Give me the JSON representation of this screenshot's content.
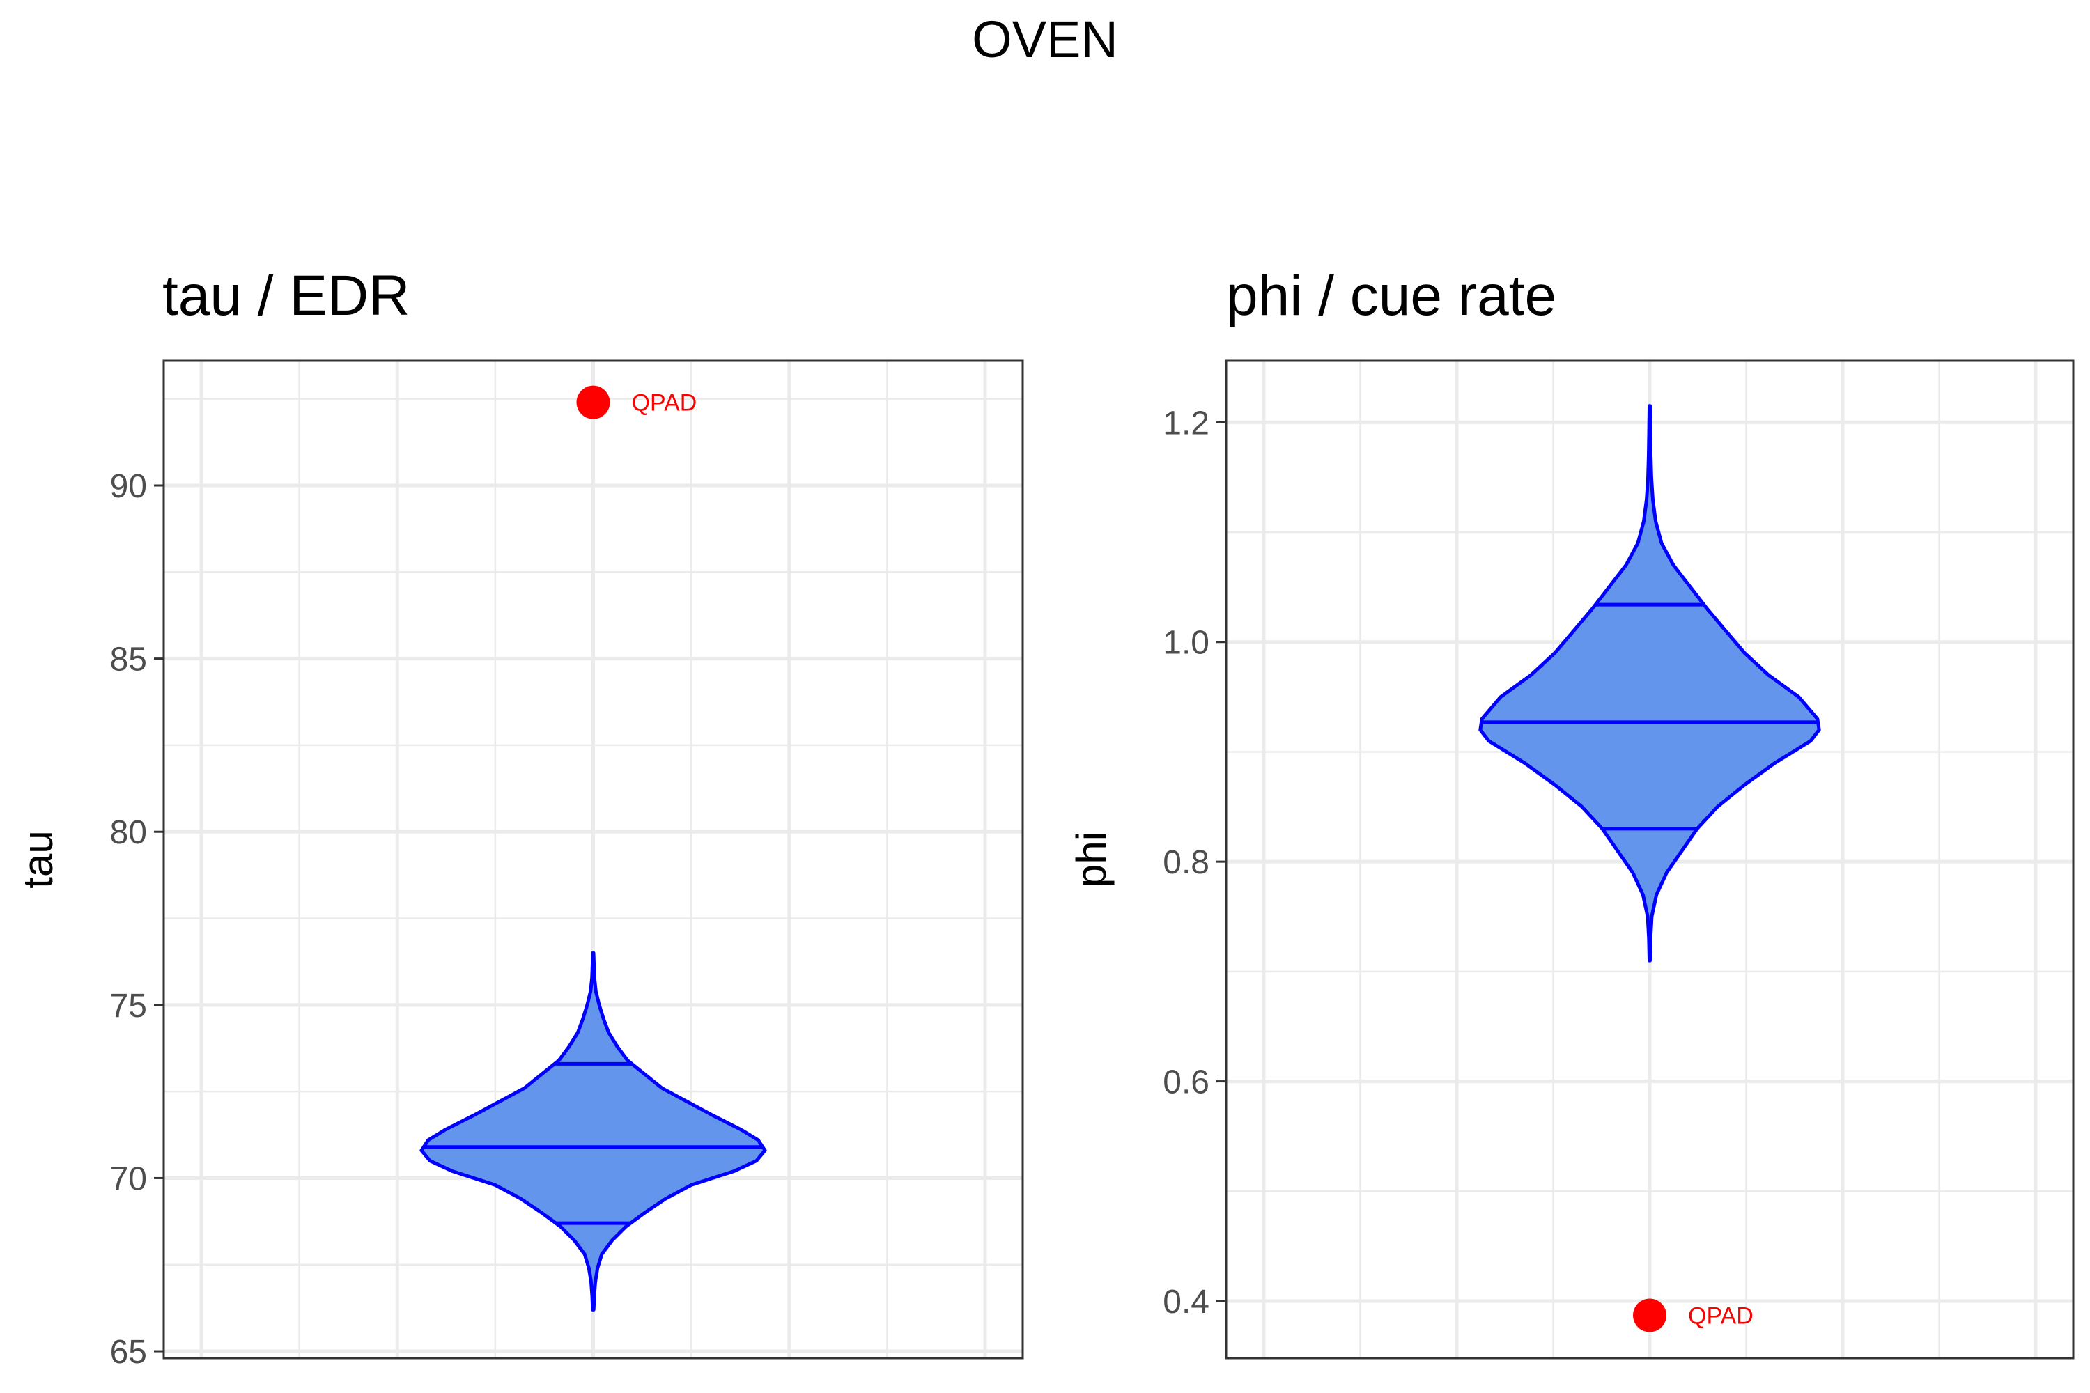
{
  "title": "OVEN",
  "chart_data": [
    {
      "type": "violin",
      "title": "tau / EDR",
      "ylabel": "tau",
      "xlabel": "",
      "ylim": [
        64.8,
        93.6
      ],
      "yticks": [
        65,
        70,
        75,
        80,
        85,
        90
      ],
      "grid": true,
      "fill_color": "#6495ED",
      "line_color": "#0000FF",
      "violin": {
        "min": 66.2,
        "max": 76.5,
        "quantiles": [
          68.7,
          70.9,
          73.3
        ],
        "density_profile": [
          [
            66.2,
            0.003
          ],
          [
            66.6,
            0.006
          ],
          [
            67.0,
            0.012
          ],
          [
            67.4,
            0.025
          ],
          [
            67.8,
            0.05
          ],
          [
            68.2,
            0.11
          ],
          [
            68.6,
            0.19
          ],
          [
            69.0,
            0.3
          ],
          [
            69.4,
            0.42
          ],
          [
            69.8,
            0.57
          ],
          [
            70.2,
            0.82
          ],
          [
            70.5,
            0.95
          ],
          [
            70.8,
            1.0
          ],
          [
            71.1,
            0.96
          ],
          [
            71.4,
            0.86
          ],
          [
            71.8,
            0.7
          ],
          [
            72.2,
            0.55
          ],
          [
            72.6,
            0.4
          ],
          [
            73.0,
            0.3
          ],
          [
            73.4,
            0.2
          ],
          [
            73.8,
            0.14
          ],
          [
            74.2,
            0.09
          ],
          [
            74.6,
            0.06
          ],
          [
            75.0,
            0.035
          ],
          [
            75.4,
            0.015
          ],
          [
            75.8,
            0.007
          ],
          [
            76.2,
            0.004
          ],
          [
            76.5,
            0.002
          ]
        ]
      },
      "annotation": {
        "label": "QPAD",
        "value": 92.4,
        "color": "#FF0000"
      }
    },
    {
      "type": "violin",
      "title": "phi / cue rate",
      "ylabel": "phi",
      "xlabel": "",
      "ylim": [
        0.348,
        1.256
      ],
      "yticks": [
        0.4,
        0.6,
        0.8,
        1.0,
        1.2
      ],
      "ytick_labels": [
        "0.4",
        "0.6",
        "0.8",
        "1.0",
        "1.2"
      ],
      "grid": true,
      "fill_color": "#6495ED",
      "line_color": "#0000FF",
      "violin": {
        "min": 0.71,
        "max": 1.215,
        "quantiles": [
          0.83,
          0.927,
          1.034
        ],
        "density_profile": [
          [
            0.71,
            0.002
          ],
          [
            0.73,
            0.005
          ],
          [
            0.75,
            0.012
          ],
          [
            0.77,
            0.04
          ],
          [
            0.79,
            0.1
          ],
          [
            0.81,
            0.19
          ],
          [
            0.83,
            0.28
          ],
          [
            0.85,
            0.4
          ],
          [
            0.87,
            0.56
          ],
          [
            0.89,
            0.74
          ],
          [
            0.91,
            0.95
          ],
          [
            0.92,
            1.0
          ],
          [
            0.93,
            0.99
          ],
          [
            0.95,
            0.88
          ],
          [
            0.97,
            0.7
          ],
          [
            0.99,
            0.56
          ],
          [
            1.01,
            0.45
          ],
          [
            1.03,
            0.34
          ],
          [
            1.05,
            0.24
          ],
          [
            1.07,
            0.14
          ],
          [
            1.09,
            0.07
          ],
          [
            1.11,
            0.035
          ],
          [
            1.13,
            0.018
          ],
          [
            1.15,
            0.01
          ],
          [
            1.17,
            0.006
          ],
          [
            1.19,
            0.004
          ],
          [
            1.215,
            0.002
          ]
        ]
      },
      "annotation": {
        "label": "QPAD",
        "value": 0.387,
        "color": "#FF0000"
      }
    }
  ]
}
